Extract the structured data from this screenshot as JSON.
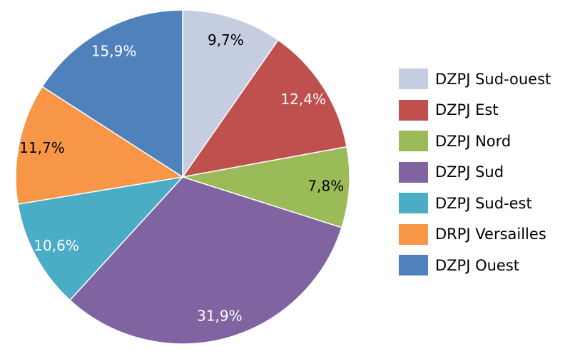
{
  "chart_data": {
    "type": "pie",
    "start_angle": "top, clockwise",
    "slices": [
      {
        "label": "DZPJ Sud-ouest",
        "value": 9.7,
        "display": "9,7%",
        "color": "#C5CEE0",
        "text_color": "#000000"
      },
      {
        "label": "DZPJ Est",
        "value": 12.4,
        "display": "12,4%",
        "color": "#C0504D",
        "text_color": "#FFFFFF"
      },
      {
        "label": "DZPJ Nord",
        "value": 7.8,
        "display": "7,8%",
        "color": "#9BBB59",
        "text_color": "#000000"
      },
      {
        "label": "DZPJ Sud",
        "value": 31.9,
        "display": "31,9%",
        "color": "#8064A2",
        "text_color": "#FFFFFF"
      },
      {
        "label": "DZPJ Sud-est",
        "value": 10.6,
        "display": "10,6%",
        "color": "#4BACC6",
        "text_color": "#FFFFFF"
      },
      {
        "label": "DRPJ Versailles",
        "value": 11.7,
        "display": "11,7%",
        "color": "#F79646",
        "text_color": "#000000"
      },
      {
        "label": "DZPJ Ouest",
        "value": 15.9,
        "display": "15,9%",
        "color": "#4F81BD",
        "text_color": "#FFFFFF"
      }
    ],
    "legend_placement": "right"
  }
}
